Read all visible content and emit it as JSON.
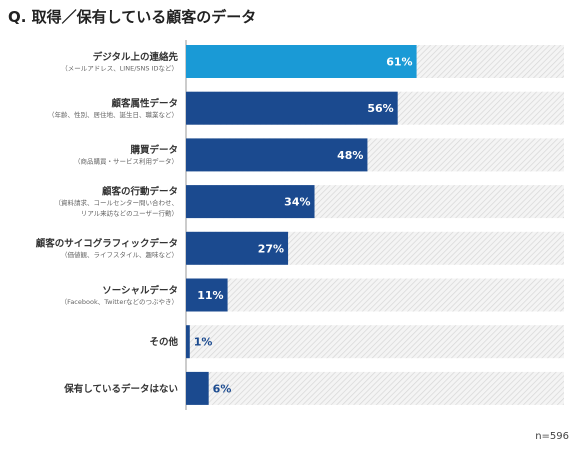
{
  "title": "Q. 取得／保有している顧客のデータ",
  "note": "n=596",
  "colors": {
    "highlight": "#1a9ad6",
    "bar": "#1b4a8f",
    "track_hatch": "#d6d6d6"
  },
  "chart_data": {
    "type": "bar",
    "orientation": "horizontal",
    "unit": "%",
    "xlim": [
      0,
      100
    ],
    "grid": false,
    "categories": [
      {
        "label": "デジタル上の連絡先",
        "sub": [
          "（メールアドレス、LINE/SNS IDなど）"
        ],
        "value": 61,
        "value_label": "61%",
        "highlight": true
      },
      {
        "label": "顧客属性データ",
        "sub": [
          "（年齢、性別、居住地、誕生日、職業など）"
        ],
        "value": 56,
        "value_label": "56%",
        "highlight": false
      },
      {
        "label": "購買データ",
        "sub": [
          "（商品購買・サービス利用データ）"
        ],
        "value": 48,
        "value_label": "48%",
        "highlight": false
      },
      {
        "label": "顧客の行動データ",
        "sub": [
          "（資料請求、コールセンター問い合わせ、",
          "リアル来訪などのユーザー行動）"
        ],
        "value": 34,
        "value_label": "34%",
        "highlight": false
      },
      {
        "label": "顧客のサイコグラフィックデータ",
        "sub": [
          "（価値観、ライフスタイル、趣味など）"
        ],
        "value": 27,
        "value_label": "27%",
        "highlight": false
      },
      {
        "label": "ソーシャルデータ",
        "sub": [
          "（Facebook、Twitterなどのつぶやき）"
        ],
        "value": 11,
        "value_label": "11%",
        "highlight": false
      },
      {
        "label": "その他",
        "sub": [],
        "value": 1,
        "value_label": "1%",
        "highlight": false
      },
      {
        "label": "保有しているデータはない",
        "sub": [],
        "value": 6,
        "value_label": "6%",
        "highlight": false
      }
    ]
  }
}
